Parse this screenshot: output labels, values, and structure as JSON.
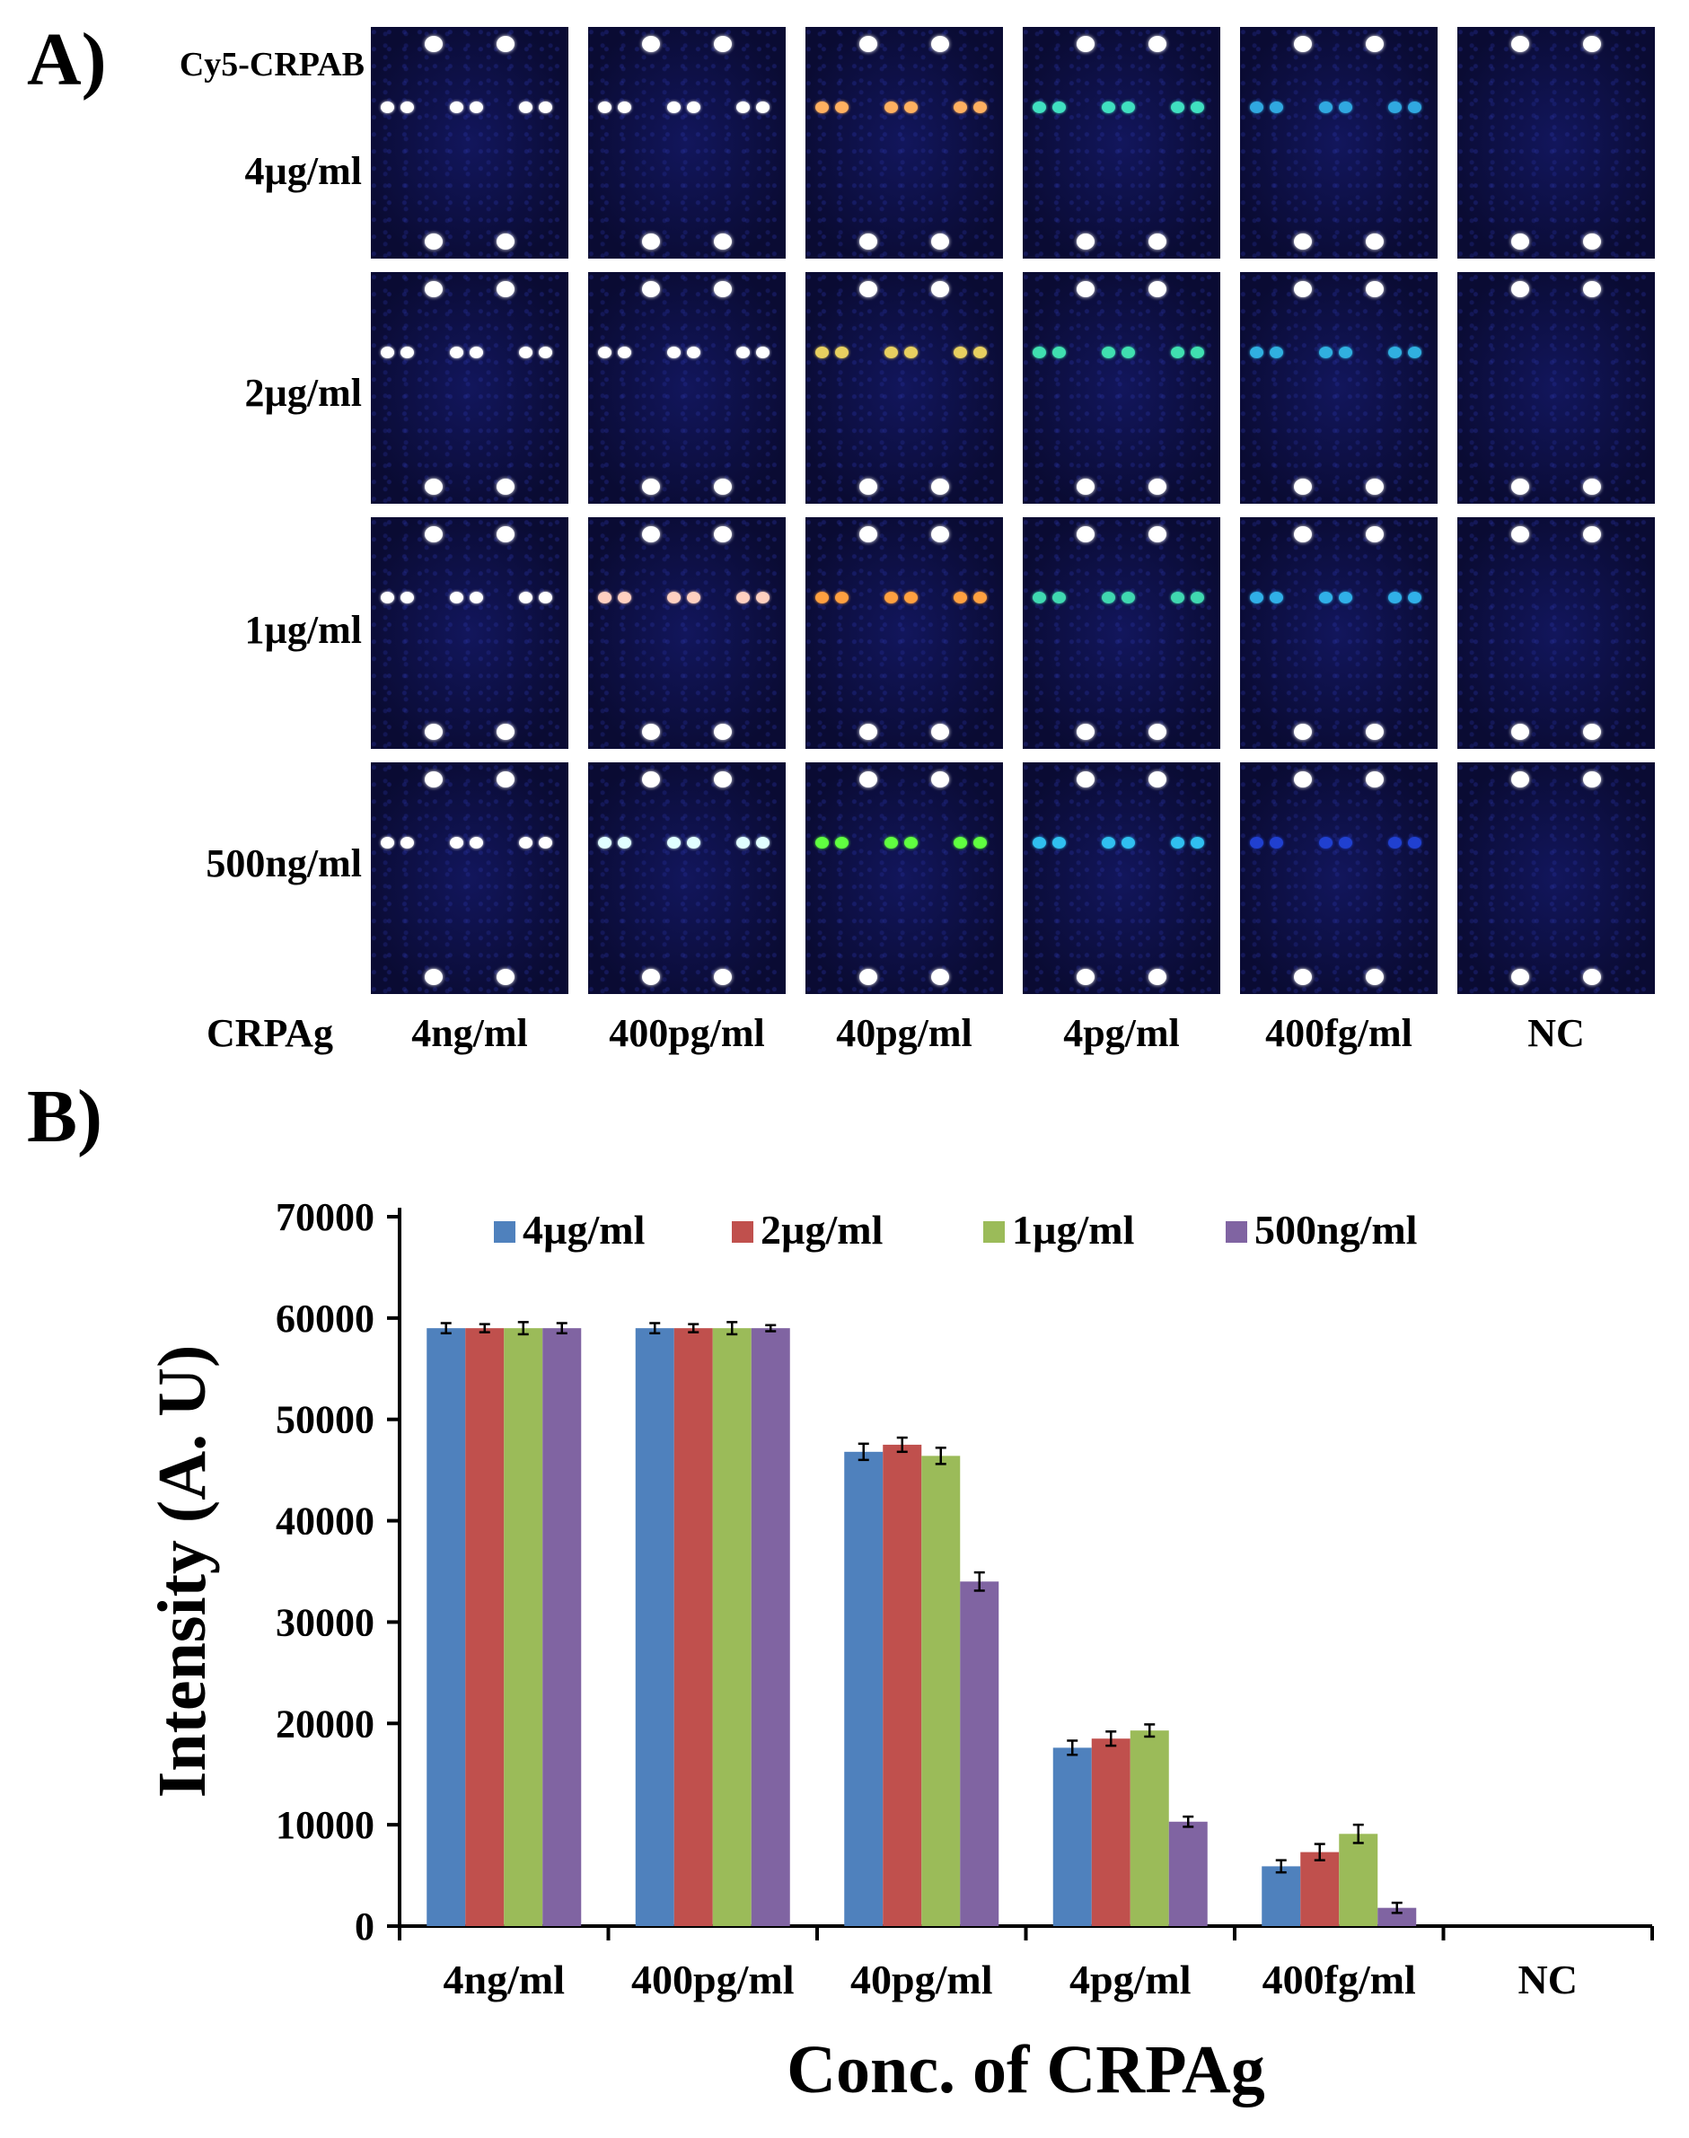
{
  "panel_a": {
    "letter": "A)",
    "antibody_label": "Cy5-CRPAB",
    "antigen_label": "CRPAg",
    "rows": [
      "4µg/ml",
      "2µg/ml",
      "1µg/ml",
      "500ng/ml"
    ],
    "columns": [
      "4ng/ml",
      "400pg/ml",
      "40pg/ml",
      "4pg/ml",
      "400fg/ml",
      "NC"
    ],
    "spot_colors": [
      [
        "#ffffff",
        "#ffffff",
        "#ffb060",
        "#40e0c0",
        "#30a8e0",
        "none"
      ],
      [
        "#ffffff",
        "#ffffff",
        "#e8d060",
        "#40e0b0",
        "#30b0e0",
        "none"
      ],
      [
        "#ffffff",
        "#ffd0c0",
        "#ffa040",
        "#40d8b0",
        "#30b0e8",
        "none"
      ],
      [
        "#ffffff",
        "#e0ffff",
        "#60ff40",
        "#30c0f0",
        "#2040d0",
        "none"
      ]
    ],
    "marker_color": "#ffffff",
    "background_color": "#0b0c38"
  },
  "panel_b": {
    "letter": "B)"
  },
  "chart_data": {
    "type": "bar",
    "title": "",
    "xlabel": "Conc. of CRPAg",
    "ylabel": "Intensity (A. U)",
    "categories": [
      "4ng/ml",
      "400pg/ml",
      "40pg/ml",
      "4pg/ml",
      "400fg/ml",
      "NC"
    ],
    "ylim": [
      0,
      70000
    ],
    "yticks": [
      0,
      10000,
      20000,
      30000,
      40000,
      50000,
      60000,
      70000
    ],
    "legend_position": "top",
    "series": [
      {
        "name": "4µg/ml",
        "color": "#4f81bd",
        "values": [
          59000,
          59000,
          46800,
          17600,
          5900,
          0
        ],
        "errors": [
          500,
          500,
          800,
          700,
          600,
          0
        ]
      },
      {
        "name": "2µg/ml",
        "color": "#c0504d",
        "values": [
          59000,
          59000,
          47500,
          18500,
          7300,
          0
        ],
        "errors": [
          400,
          400,
          700,
          700,
          800,
          0
        ]
      },
      {
        "name": "1µg/ml",
        "color": "#9bbb59",
        "values": [
          59000,
          59000,
          46400,
          19300,
          9100,
          0
        ],
        "errors": [
          600,
          600,
          800,
          600,
          900,
          0
        ]
      },
      {
        "name": "500ng/ml",
        "color": "#8064a2",
        "values": [
          59000,
          59000,
          34000,
          10300,
          1800,
          0
        ],
        "errors": [
          500,
          300,
          900,
          500,
          500,
          0
        ]
      }
    ]
  }
}
